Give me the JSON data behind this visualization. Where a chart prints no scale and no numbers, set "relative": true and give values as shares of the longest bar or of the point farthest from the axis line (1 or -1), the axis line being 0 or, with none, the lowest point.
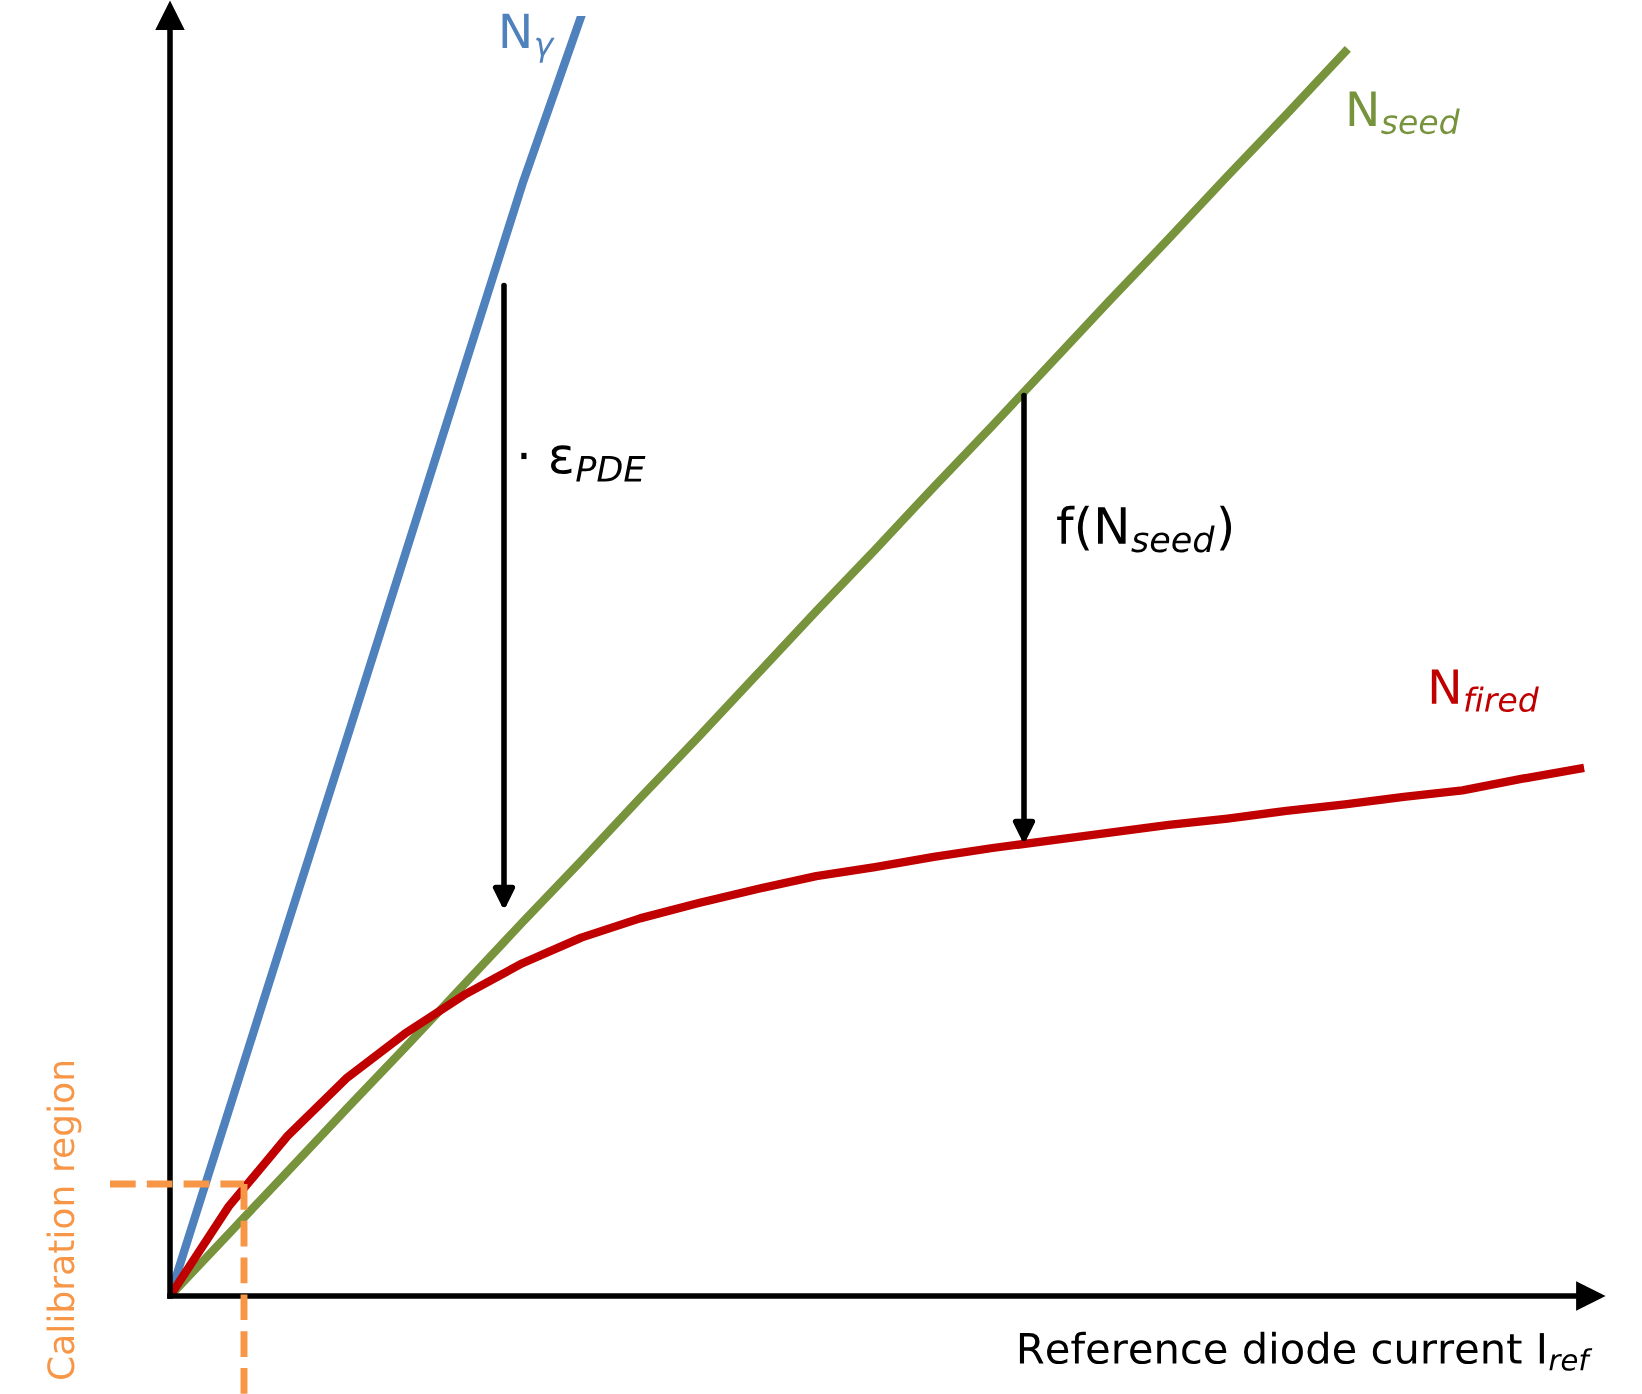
{
  "chart_data": {
    "type": "line",
    "relative": true,
    "legend": false,
    "marker": "none",
    "line_style": "solid",
    "xlabel": "Reference diode current I$_{ref}$",
    "categories": [
      null,
      null,
      null,
      null,
      null,
      null,
      null,
      null,
      null,
      null,
      null,
      null,
      null,
      null,
      null,
      null,
      null,
      null,
      null,
      null,
      null,
      null,
      null,
      null,
      null
    ],
    "series": [
      {
        "name": "N$_{γ}$",
        "color": "#4f81bd",
        "values": [
          0,
          0.145,
          0.29,
          0.434,
          0.579,
          0.724,
          0.869,
          1.0,
          null,
          null,
          null,
          null,
          null,
          null,
          null,
          null,
          null,
          null,
          null,
          null,
          null,
          null,
          null,
          null,
          null
        ]
      },
      {
        "name": "N$_{seed}$",
        "color": "#77933c",
        "values": [
          0,
          0.0486,
          0.0972,
          0.146,
          0.194,
          0.243,
          0.292,
          0.34,
          0.389,
          0.437,
          0.486,
          0.535,
          0.583,
          0.632,
          0.68,
          0.729,
          0.778,
          0.826,
          0.875,
          0.923,
          0.972,
          null,
          null,
          null,
          null
        ]
      },
      {
        "name": "N$_{fired}$",
        "color": "#c00000",
        "values": [
          0,
          0.07,
          0.125,
          0.17,
          0.205,
          0.235,
          0.26,
          0.28,
          0.295,
          0.307,
          0.318,
          0.328,
          0.335,
          0.343,
          0.35,
          0.356,
          0.362,
          0.368,
          0.373,
          0.379,
          0.384,
          0.39,
          0.395,
          0.404,
          0.412
        ]
      }
    ],
    "annotations": [
      "· ε$_{PDE}$",
      "f(N$_{seed}$)",
      "Calibration region"
    ]
  }
}
